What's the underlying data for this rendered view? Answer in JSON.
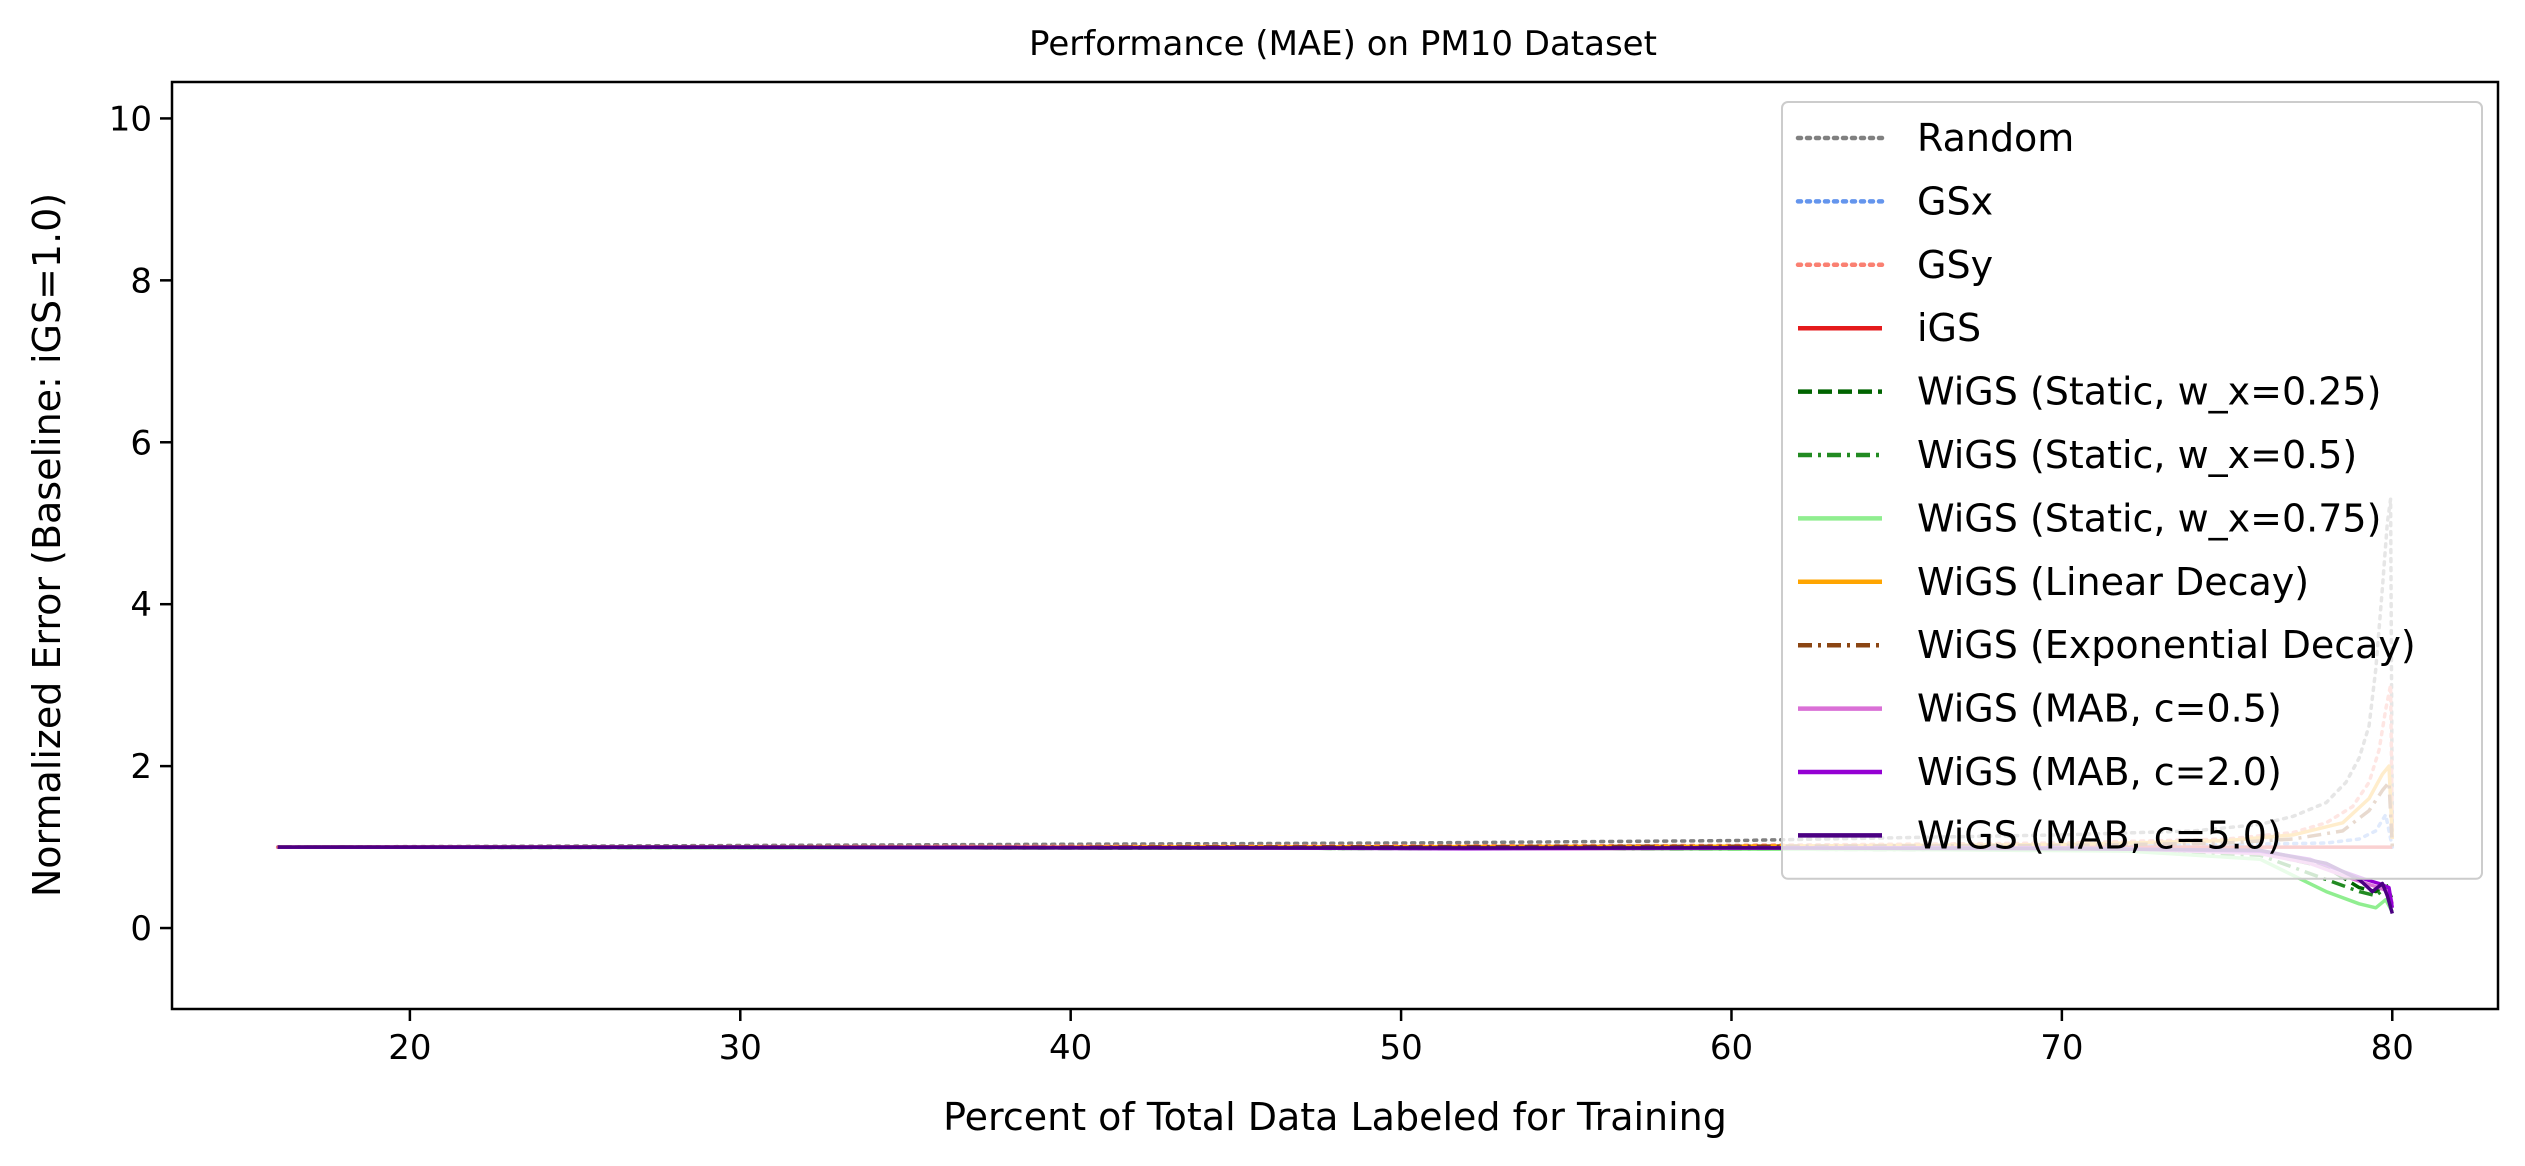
{
  "chart_data": {
    "type": "line",
    "title": "Performance (MAE) on PM10 Dataset",
    "xlabel": "Percent of Total Data Labeled for Training",
    "ylabel": "Normalized Error (Baseline: iGS=1.0)",
    "xlim": [
      12.8,
      83.2
    ],
    "ylim": [
      -1.0,
      10.45
    ],
    "xticks": [
      20,
      30,
      40,
      50,
      60,
      70,
      80
    ],
    "yticks": [
      0,
      2,
      4,
      6,
      8,
      10
    ],
    "grid": false,
    "legend_position": "top-right",
    "series": [
      {
        "name": "Random",
        "color": "#808080",
        "style": "dotted",
        "x": [
          16,
          30,
          50,
          60,
          70,
          74,
          76,
          77,
          78,
          78.6,
          79,
          79.3,
          79.5,
          79.7,
          79.85,
          79.95,
          80
        ],
        "y": [
          1.0,
          1.02,
          1.05,
          1.08,
          1.15,
          1.2,
          1.28,
          1.38,
          1.55,
          1.8,
          2.1,
          2.5,
          3.2,
          4.2,
          5.0,
          5.3,
          1.2
        ]
      },
      {
        "name": "GSx",
        "color": "#6495ED",
        "style": "dotted",
        "x": [
          16,
          40,
          60,
          70,
          75,
          78,
          79,
          79.5,
          79.8,
          80
        ],
        "y": [
          1.0,
          1.0,
          1.0,
          1.01,
          1.03,
          1.05,
          1.1,
          1.2,
          1.4,
          1.0
        ]
      },
      {
        "name": "GSy",
        "color": "#FA8072",
        "style": "dotted",
        "x": [
          16,
          40,
          60,
          70,
          75,
          77,
          78,
          78.8,
          79.3,
          79.6,
          79.8,
          79.95,
          80
        ],
        "y": [
          1.0,
          1.01,
          1.02,
          1.05,
          1.1,
          1.18,
          1.3,
          1.5,
          1.8,
          2.2,
          2.7,
          3.0,
          1.2
        ]
      },
      {
        "name": "iGS",
        "color": "#E41A1C",
        "style": "solid",
        "x": [
          16,
          80
        ],
        "y": [
          1.0,
          1.0
        ]
      },
      {
        "name": "WiGS (Static, w_x=0.25)",
        "color": "#006400",
        "style": "dashed",
        "x": [
          16,
          40,
          55,
          65,
          72,
          76,
          78,
          79,
          79.5,
          79.8,
          80
        ],
        "y": [
          1.0,
          0.99,
          0.98,
          0.98,
          0.97,
          0.93,
          0.75,
          0.5,
          0.45,
          0.55,
          0.35
        ]
      },
      {
        "name": "WiGS (Static, w_x=0.5)",
        "color": "#228B22",
        "style": "dashdot",
        "x": [
          16,
          40,
          55,
          65,
          72,
          76,
          78,
          79,
          79.5,
          79.8,
          80
        ],
        "y": [
          1.0,
          0.99,
          0.98,
          0.97,
          0.96,
          0.9,
          0.6,
          0.45,
          0.4,
          0.5,
          0.3
        ]
      },
      {
        "name": "WiGS (Static, w_x=0.75)",
        "color": "#90EE90",
        "style": "solid",
        "x": [
          16,
          40,
          55,
          65,
          72,
          76,
          78,
          79,
          79.5,
          79.8,
          80
        ],
        "y": [
          1.0,
          0.99,
          0.98,
          0.97,
          0.95,
          0.85,
          0.45,
          0.3,
          0.25,
          0.35,
          0.2
        ]
      },
      {
        "name": "WiGS (Linear Decay)",
        "color": "#FFA500",
        "style": "solid",
        "x": [
          16,
          40,
          60,
          70,
          75,
          77,
          78.5,
          79.3,
          79.7,
          79.9,
          80
        ],
        "y": [
          1.0,
          1.0,
          1.01,
          1.03,
          1.08,
          1.15,
          1.3,
          1.6,
          1.9,
          2.0,
          1.1
        ]
      },
      {
        "name": "WiGS (Exponential Decay)",
        "color": "#8B4513",
        "style": "dashdot",
        "x": [
          16,
          40,
          60,
          70,
          75,
          77,
          78.5,
          79.3,
          79.7,
          79.9,
          80
        ],
        "y": [
          1.0,
          1.0,
          1.01,
          1.02,
          1.05,
          1.1,
          1.2,
          1.45,
          1.7,
          1.8,
          1.0
        ]
      },
      {
        "name": "WiGS (MAB, c=0.5)",
        "color": "#DA70D6",
        "style": "solid",
        "x": [
          16,
          30,
          45,
          55,
          65,
          72,
          76,
          77.5,
          78.5,
          79.2,
          79.6,
          79.9,
          80
        ],
        "y": [
          1.0,
          1.0,
          0.99,
          0.98,
          0.99,
          0.98,
          0.92,
          0.8,
          0.65,
          0.55,
          0.5,
          0.45,
          0.3
        ]
      },
      {
        "name": "WiGS (MAB, c=2.0)",
        "color": "#9400D3",
        "style": "solid",
        "x": [
          16,
          30,
          45,
          52,
          60,
          70,
          76,
          77.5,
          78.5,
          79.2,
          79.6,
          79.9,
          80
        ],
        "y": [
          1.0,
          1.0,
          0.99,
          0.98,
          0.99,
          0.99,
          0.95,
          0.85,
          0.7,
          0.6,
          0.55,
          0.5,
          0.25
        ]
      },
      {
        "name": "WiGS (MAB, c=5.0)",
        "color": "#4B0082",
        "style": "solid",
        "x": [
          16,
          30,
          40,
          50,
          60,
          70,
          76,
          78,
          79,
          79.4,
          79.7,
          79.85,
          80
        ],
        "y": [
          1.0,
          1.0,
          0.99,
          0.99,
          0.99,
          0.98,
          0.96,
          0.8,
          0.6,
          0.45,
          0.55,
          0.4,
          0.18
        ]
      }
    ]
  }
}
